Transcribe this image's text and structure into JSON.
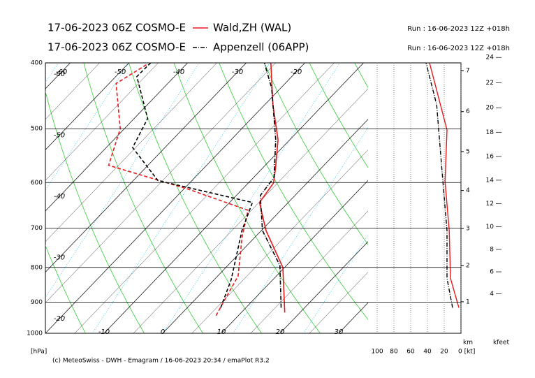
{
  "chart_data": {
    "type": "emagram",
    "entries": [
      {
        "model": "17-06-2023 06Z COSMO-E",
        "station": "Wald,ZH (WAL)",
        "run": "Run : 16-06-2023 12Z +018h",
        "color": "#e8191b",
        "dash": "solid",
        "temperature": {
          "p": [
            932,
            800,
            706,
            642,
            601,
            570,
            519,
            461,
            400
          ],
          "t": [
            17.4,
            9.7,
            0.8,
            -4.9,
            -5.7,
            -7.9,
            -12,
            -18.6,
            -25.8
          ]
        },
        "dewpoint": {
          "p": [
            942,
            893,
            824,
            722,
            659,
            614,
            566,
            500,
            429,
            401
          ],
          "t": [
            6.2,
            5.1,
            3.5,
            -2.2,
            -5.6,
            -19.1,
            -36.7,
            -40.7,
            -48.8,
            -46.6
          ]
        },
        "wind_speed": {
          "p": [
            917,
            830,
            706,
            598,
            502,
            400
          ],
          "v": [
            2.5,
            12.5,
            14,
            19,
            16.7,
            37.5
          ]
        }
      },
      {
        "model": "17-06-2023 06Z COSMO-E",
        "station": "Appenzell (06APP)",
        "run": "Run : 16-06-2023 12Z +018h",
        "color": "#000000",
        "dash": "dashdot",
        "temperature": {
          "p": [
            917,
            795,
            706,
            627,
            590,
            519,
            436,
            400
          ],
          "t": [
            16,
            8.9,
            0.2,
            -5.9,
            -6.5,
            -12.4,
            -21.5,
            -26.9
          ]
        },
        "dewpoint": {
          "p": [
            917,
            834,
            706,
            642,
            596,
            533,
            483,
            419,
            400
          ],
          "t": [
            5.7,
            2.9,
            -3.3,
            -6.1,
            -25.8,
            -35.5,
            -37.7,
            -46.4,
            -46.3
          ]
        },
        "wind_speed": {
          "p": [
            917,
            830,
            706,
            579,
            461,
            400
          ],
          "v": [
            10,
            16.7,
            16.7,
            22.5,
            29,
            41.7
          ]
        }
      }
    ],
    "pressure_axis": {
      "label": "[hPa]",
      "ylim": [
        1000,
        400
      ],
      "yticks": [
        400,
        500,
        600,
        700,
        800,
        900,
        1000
      ],
      "log": true
    },
    "temperature_axis": {
      "xlim": [
        -20,
        35
      ],
      "labels_bottom": [
        -10,
        0,
        10,
        20,
        30
      ],
      "labels_top": [
        -60,
        -50,
        -40,
        -30,
        -20
      ],
      "labels_left": [
        -60,
        -50,
        -40,
        -30,
        -20
      ]
    },
    "wind_axis": {
      "xlim": [
        100,
        0
      ],
      "xticks": [
        100,
        80,
        60,
        40,
        20,
        {
          "value": 0,
          "label": "0 [kt]"
        }
      ]
    },
    "height_axes": {
      "km": {
        "label": "km",
        "ticks": [
          1,
          2,
          3,
          4,
          5,
          6,
          7
        ]
      },
      "kfeet": {
        "label": "kfeet",
        "ticks": [
          4,
          6,
          8,
          10,
          12,
          14,
          16,
          18,
          20,
          22,
          24
        ]
      }
    },
    "footer": "(c) MeteoSwiss - DWH - Emagram / 16-06-2023 20:34 / emaPlot R3.2"
  }
}
